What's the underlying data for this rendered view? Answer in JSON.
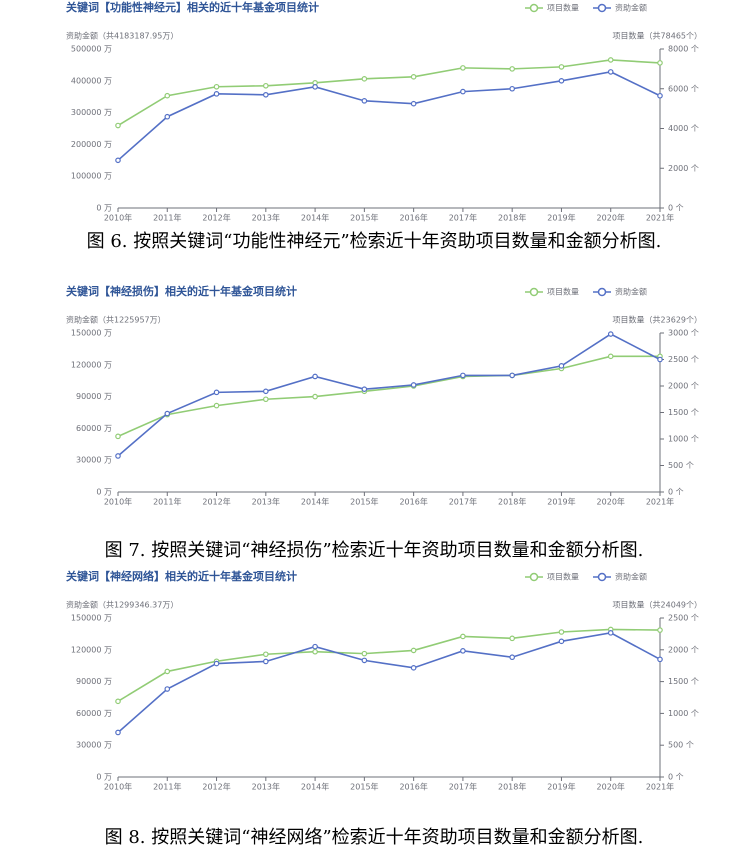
{
  "chart_data": [
    {
      "type": "line",
      "title": "关键词【功能性神经元】相关的近十年基金项目统计",
      "caption": "图 6. 按照关键词“功能性神经元”检索近十年资助项目数量和金额分析图.",
      "y_label": "资助金额（共4183187.95万）",
      "y2_label": "项目数量（共78465个）",
      "categories": [
        "2010年",
        "2011年",
        "2012年",
        "2013年",
        "2014年",
        "2015年",
        "2016年",
        "2017年",
        "2018年",
        "2019年",
        "2020年",
        "2021年"
      ],
      "series": [
        {
          "name": "项目数量",
          "color": "#91cc75",
          "axis": "y2",
          "values": [
            4150,
            5650,
            6100,
            6150,
            6300,
            6500,
            6600,
            7050,
            7000,
            7100,
            7450,
            7300
          ]
        },
        {
          "name": "资助金额",
          "color": "#5470c6",
          "values": [
            150000,
            287000,
            359000,
            356000,
            381000,
            337000,
            328000,
            366000,
            375000,
            400000,
            428000,
            353000
          ]
        }
      ],
      "ylim": [
        0,
        500000
      ],
      "yticks": [
        {
          "value": 0,
          "label": "0 万"
        },
        {
          "value": 100000,
          "label": "100000 万"
        },
        {
          "value": 200000,
          "label": "200000 万"
        },
        {
          "value": 300000,
          "label": "300000 万"
        },
        {
          "value": 400000,
          "label": "400000 万"
        },
        {
          "value": 500000,
          "label": "500000 万"
        }
      ],
      "y2lim": [
        0,
        8000
      ],
      "y2ticks": [
        {
          "value": 0,
          "label": "0 个"
        },
        {
          "value": 2000,
          "label": "2000 个"
        },
        {
          "value": 4000,
          "label": "4000 个"
        },
        {
          "value": 6000,
          "label": "6000 个"
        },
        {
          "value": 8000,
          "label": "8000 个"
        }
      ]
    },
    {
      "type": "line",
      "title": "关键词【神经损伤】相关的近十年基金项目统计",
      "caption": "图 7. 按照关键词“神经损伤”检索近十年资助项目数量和金额分析图.",
      "y_label": "资助金额（共1225957万）",
      "y2_label": "项目数量（共23629个）",
      "categories": [
        "2010年",
        "2011年",
        "2012年",
        "2013年",
        "2014年",
        "2015年",
        "2016年",
        "2017年",
        "2018年",
        "2019年",
        "2020年",
        "2021年"
      ],
      "series": [
        {
          "name": "项目数量",
          "color": "#91cc75",
          "axis": "y2",
          "values": [
            1050,
            1460,
            1630,
            1750,
            1800,
            1900,
            2000,
            2180,
            2200,
            2330,
            2560,
            2560
          ]
        },
        {
          "name": "资助金额",
          "color": "#5470c6",
          "values": [
            34000,
            74000,
            94000,
            95000,
            109000,
            97000,
            101000,
            110000,
            110000,
            119000,
            149000,
            125000
          ]
        }
      ],
      "ylim": [
        0,
        150000
      ],
      "yticks": [
        {
          "value": 0,
          "label": "0 万"
        },
        {
          "value": 30000,
          "label": "30000 万"
        },
        {
          "value": 60000,
          "label": "60000 万"
        },
        {
          "value": 90000,
          "label": "90000 万"
        },
        {
          "value": 120000,
          "label": "120000 万"
        },
        {
          "value": 150000,
          "label": "150000 万"
        }
      ],
      "y2lim": [
        0,
        3000
      ],
      "y2ticks": [
        {
          "value": 0,
          "label": "0 个"
        },
        {
          "value": 500,
          "label": "500 个"
        },
        {
          "value": 1000,
          "label": "1000 个"
        },
        {
          "value": 1500,
          "label": "1500 个"
        },
        {
          "value": 2000,
          "label": "2000 个"
        },
        {
          "value": 2500,
          "label": "2500 个"
        },
        {
          "value": 3000,
          "label": "3000 个"
        }
      ]
    },
    {
      "type": "line",
      "title": "关键词【神经网络】相关的近十年基金项目统计",
      "caption": "图 8. 按照关键词“神经网络”检索近十年资助项目数量和金额分析图.",
      "y_label": "资助金额（共1299346.37万）",
      "y2_label": "项目数量（共24049个）",
      "categories": [
        "2010年",
        "2011年",
        "2012年",
        "2013年",
        "2014年",
        "2015年",
        "2016年",
        "2017年",
        "2018年",
        "2019年",
        "2020年",
        "2021年"
      ],
      "series": [
        {
          "name": "项目数量",
          "color": "#91cc75",
          "axis": "y2",
          "values": [
            1190,
            1660,
            1820,
            1930,
            1970,
            1940,
            1990,
            2210,
            2180,
            2280,
            2320,
            2310
          ]
        },
        {
          "name": "资助金额",
          "color": "#5470c6",
          "values": [
            42000,
            83000,
            107000,
            109000,
            123000,
            110000,
            103000,
            119000,
            113000,
            128000,
            136000,
            111000
          ]
        }
      ],
      "ylim": [
        0,
        150000
      ],
      "yticks": [
        {
          "value": 0,
          "label": "0 万"
        },
        {
          "value": 30000,
          "label": "30000 万"
        },
        {
          "value": 60000,
          "label": "60000 万"
        },
        {
          "value": 90000,
          "label": "90000 万"
        },
        {
          "value": 120000,
          "label": "120000 万"
        },
        {
          "value": 150000,
          "label": "150000 万"
        }
      ],
      "y2lim": [
        0,
        2500
      ],
      "y2ticks": [
        {
          "value": 0,
          "label": "0 个"
        },
        {
          "value": 500,
          "label": "500 个"
        },
        {
          "value": 1000,
          "label": "1000 个"
        },
        {
          "value": 1500,
          "label": "1500 个"
        },
        {
          "value": 2000,
          "label": "2000 个"
        },
        {
          "value": 2500,
          "label": "2500 个"
        }
      ]
    }
  ]
}
